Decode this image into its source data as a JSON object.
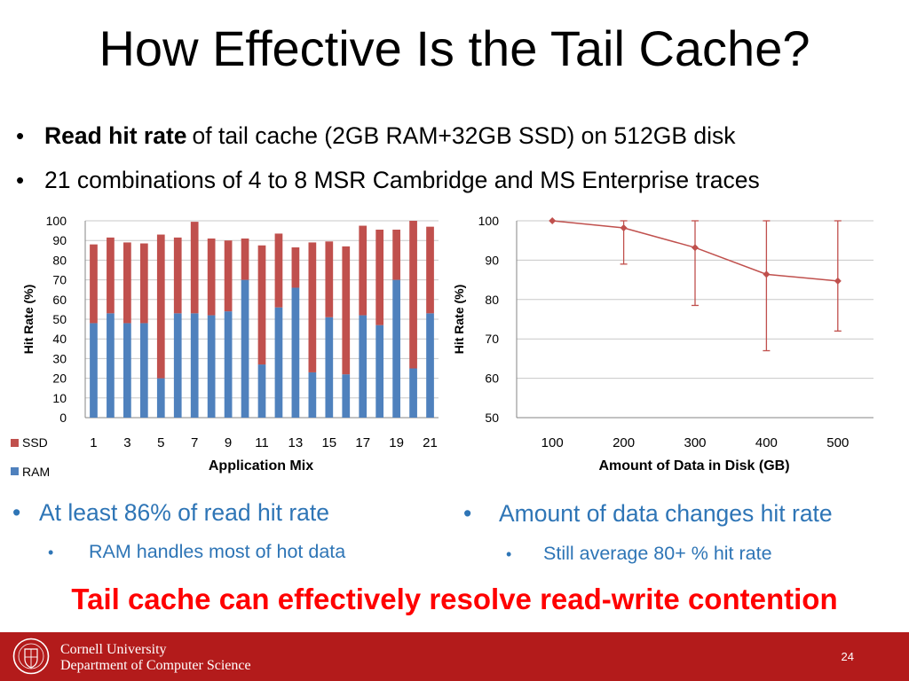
{
  "slide": {
    "title": "How Effective Is the Tail Cache?",
    "bullets": [
      {
        "bold": "Read hit rate",
        "text": "of tail cache (2GB RAM+32GB SSD) on 512GB disk"
      },
      {
        "bold": "",
        "text": "21 combinations of 4 to 8 MSR Cambridge and MS Enterprise traces"
      }
    ],
    "left_point": "At least 86% of read hit rate",
    "left_sub": "RAM handles most of hot data",
    "right_point": "Amount of data changes hit rate",
    "right_sub": "Still average 80+ % hit rate",
    "conclusion": "Tail cache can effectively resolve read-write contention",
    "footer": {
      "university": "Cornell University",
      "department": "Department of Computer Science",
      "page_number": "24"
    },
    "colors": {
      "ram": "#4f81bd",
      "ssd": "#c0504d",
      "accent_text": "#2e75b6",
      "conclusion": "#ff0000",
      "footer_bg": "#b31b1b"
    }
  },
  "chart_data": [
    {
      "type": "bar",
      "stacked": true,
      "categories": [
        "1",
        "2",
        "3",
        "4",
        "5",
        "6",
        "7",
        "8",
        "9",
        "10",
        "11",
        "12",
        "13",
        "14",
        "15",
        "16",
        "17",
        "18",
        "19",
        "20",
        "21"
      ],
      "tick_labels": [
        "1",
        "3",
        "5",
        "7",
        "9",
        "11",
        "13",
        "15",
        "17",
        "19",
        "21"
      ],
      "series": [
        {
          "name": "RAM",
          "color": "#4f81bd",
          "values": [
            48,
            53,
            48,
            48,
            20,
            53,
            53,
            52,
            54,
            70,
            27,
            56,
            66,
            23,
            51,
            22,
            52,
            47,
            70,
            25,
            53
          ]
        },
        {
          "name": "SSD",
          "color": "#c0504d",
          "values": [
            40,
            38.5,
            41,
            40.5,
            73,
            38.5,
            46.5,
            39,
            36,
            21,
            60.5,
            37.5,
            20.5,
            66,
            38.5,
            65,
            45.5,
            48.5,
            25.5,
            75,
            44
          ]
        }
      ],
      "xlabel": "Application Mix",
      "ylabel": "Hit Rate (%)",
      "ylim": [
        0,
        100
      ],
      "yticks": [
        "0",
        "10",
        "20",
        "30",
        "40",
        "50",
        "60",
        "70",
        "80",
        "90",
        "100"
      ],
      "grid": true,
      "legend": "bottom-left"
    },
    {
      "type": "line",
      "x": [
        100,
        200,
        300,
        400,
        500
      ],
      "tick_labels": [
        "100",
        "200",
        "300",
        "400",
        "500"
      ],
      "series": [
        {
          "color": "#c0504d",
          "values": [
            100,
            98.2,
            93.2,
            86.4,
            84.7
          ],
          "error_low": [
            100,
            89,
            78.5,
            67,
            72
          ],
          "error_high": [
            100,
            100,
            100,
            100,
            100
          ]
        }
      ],
      "xlabel": "Amount of Data in Disk (GB)",
      "ylabel": "Hit Rate (%)",
      "ylim": [
        50,
        100
      ],
      "yticks": [
        "50",
        "60",
        "70",
        "80",
        "90",
        "100"
      ],
      "grid": true
    }
  ]
}
